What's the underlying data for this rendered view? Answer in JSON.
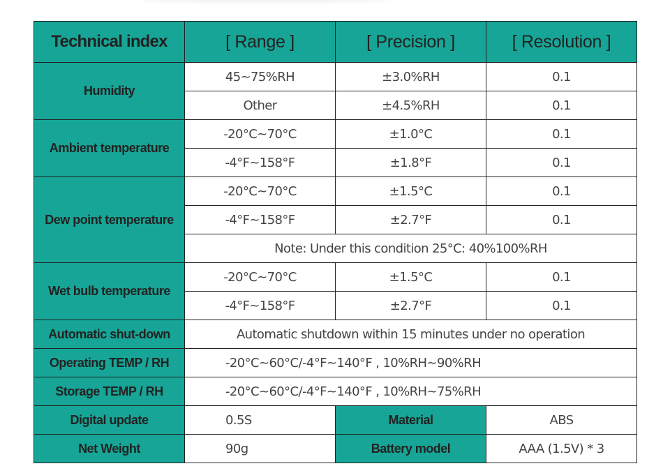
{
  "header": {
    "technical_index": "Technical index",
    "range": "[ Range ]",
    "precision": "[ Precision ]",
    "resolution": "[ Resolution ]"
  },
  "humidity": {
    "label": "Humidity",
    "rows": [
      {
        "range": "45~75%RH",
        "precision": "±3.0%RH",
        "resolution": "0.1"
      },
      {
        "range": "Other",
        "precision": "±4.5%RH",
        "resolution": "0.1"
      }
    ]
  },
  "ambient": {
    "label": "Ambient temperature",
    "rows": [
      {
        "range": "-20°C~70°C",
        "precision": "±1.0°C",
        "resolution": "0.1"
      },
      {
        "range": "-4°F~158°F",
        "precision": "±1.8°F",
        "resolution": "0.1"
      }
    ]
  },
  "dew_point": {
    "label": "Dew point temperature",
    "rows": [
      {
        "range": "-20°C~70°C",
        "precision": "±1.5°C",
        "resolution": "0.1"
      },
      {
        "range": "-4°F~158°F",
        "precision": "±2.7°F",
        "resolution": "0.1"
      }
    ],
    "note": "Note: Under this condition 25°C: 40%100%RH"
  },
  "wet_bulb": {
    "label": "Wet bulb temperature",
    "rows": [
      {
        "range": "-20°C~70°C",
        "precision": "±1.5°C",
        "resolution": "0.1"
      },
      {
        "range": "-4°F~158°F",
        "precision": "±2.7°F",
        "resolution": "0.1"
      }
    ]
  },
  "auto_shutdown": {
    "label": "Automatic shut-down",
    "value": "Automatic shutdown within 15 minutes under no operation"
  },
  "operating": {
    "label": "Operating TEMP / RH",
    "value": "-20°C~60°C/-4°F~140°F , 10%RH~90%RH"
  },
  "storage": {
    "label": "Storage TEMP / RH",
    "value": "-20°C~60°C/-4°F~140°F , 10%RH~75%RH"
  },
  "digital_update": {
    "label": "Digital update",
    "value": "0.5S"
  },
  "material": {
    "label": "Material",
    "value": "ABS"
  },
  "net_weight": {
    "label": "Net Weight",
    "value": "90g"
  },
  "battery": {
    "label": "Battery model",
    "value": "AAA (1.5V) * 3"
  },
  "colors": {
    "header_teal": "#16a596",
    "border": "#222222"
  }
}
